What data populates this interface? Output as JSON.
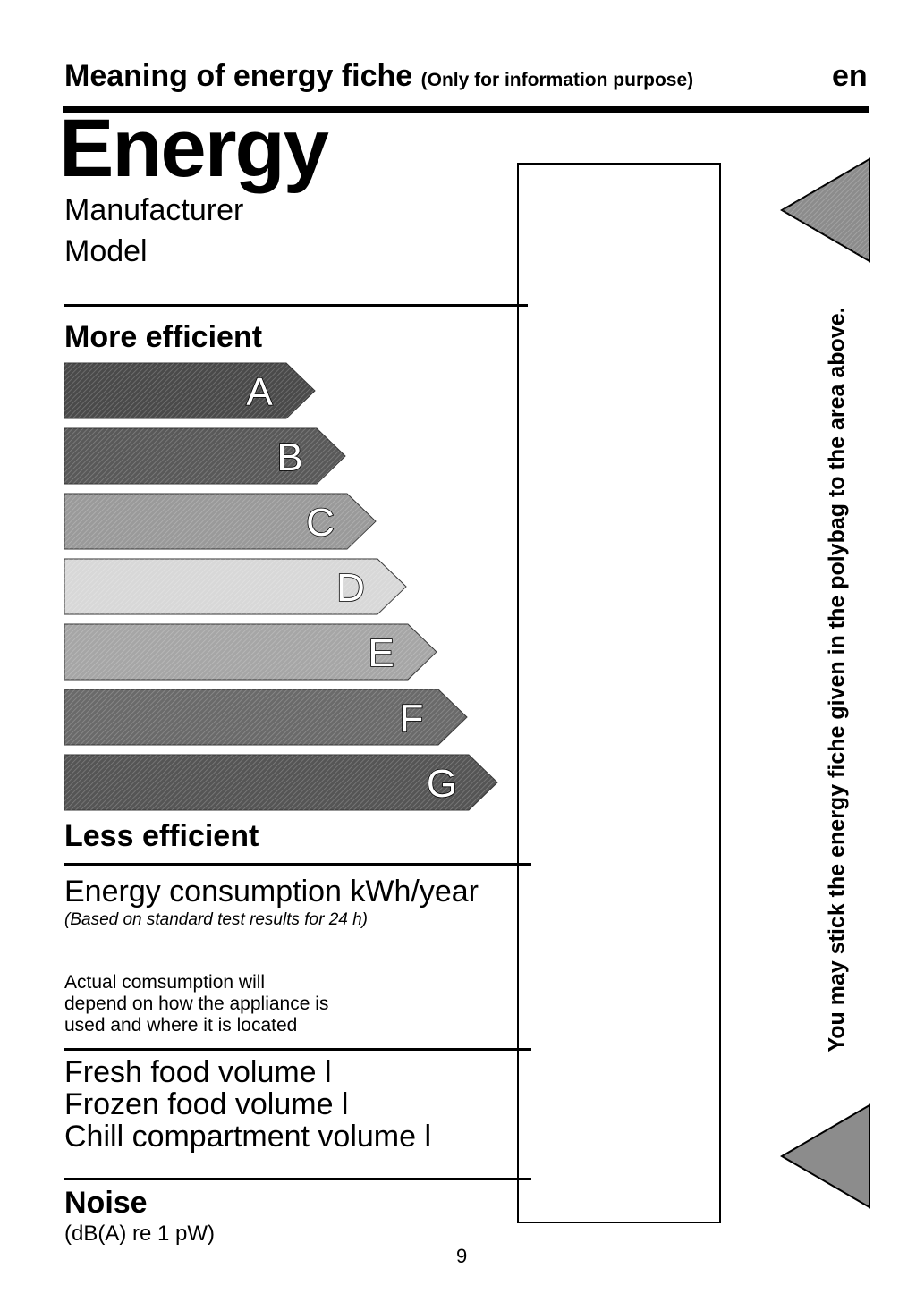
{
  "header": {
    "title": "Meaning of energy fiche",
    "subtitle": "(Only for information purpose)",
    "language": "en"
  },
  "label": {
    "energy_title": "Energy",
    "manufacturer": "Manufacturer",
    "model": "Model",
    "more_efficient": "More efficient",
    "less_efficient": "Less efficient",
    "bands": [
      {
        "letter": "A",
        "color": "#4a4a4a"
      },
      {
        "letter": "B",
        "color": "#595959"
      },
      {
        "letter": "C",
        "color": "#9a9a9a"
      },
      {
        "letter": "D",
        "color": "#d8d8d8"
      },
      {
        "letter": "E",
        "color": "#a6a6a6"
      },
      {
        "letter": "F",
        "color": "#6a6a6a"
      },
      {
        "letter": "G",
        "color": "#555555"
      }
    ],
    "energy_consumption": "Energy consumption kWh/year",
    "energy_note": "(Based on standard test results for 24 h)",
    "actual_consumption": [
      "Actual comsumption will",
      "depend on how the appliance is",
      "used and where it is located"
    ],
    "volumes": [
      "Fresh food volume l",
      "Frozen food volume l",
      "Chill compartment volume l"
    ],
    "noise": "Noise",
    "noise_unit": "(dB(A) re 1 pW)"
  },
  "side_note": "You may stick the energy fiche given in the polybag to the area above.",
  "page_number": "9",
  "colors": {
    "triangle_fill": "#8c8c8c"
  }
}
